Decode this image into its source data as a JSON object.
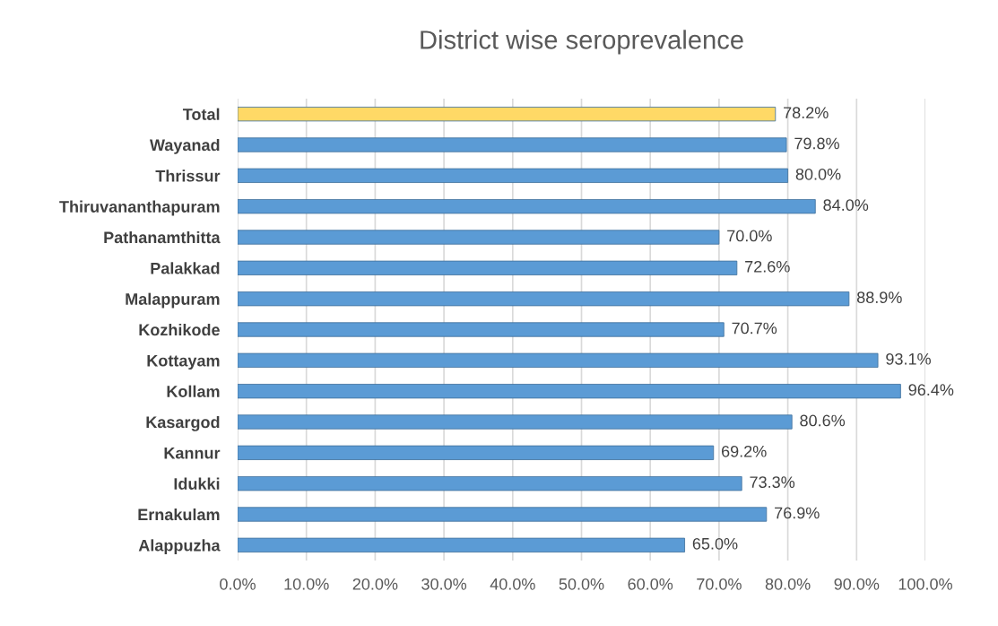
{
  "chart_data": {
    "type": "bar",
    "orientation": "horizontal",
    "title": "District wise seroprevalence",
    "categories": [
      "Total",
      "Wayanad",
      "Thrissur",
      "Thiruvananthapuram",
      "Pathanamthitta",
      "Palakkad",
      "Malappuram",
      "Kozhikode",
      "Kottayam",
      "Kollam",
      "Kasargod",
      "Kannur",
      "Idukki",
      "Ernakulam",
      "Alappuzha"
    ],
    "values": [
      78.2,
      79.8,
      80.0,
      84.0,
      70.0,
      72.6,
      88.9,
      70.7,
      93.1,
      96.4,
      80.6,
      69.2,
      73.3,
      76.9,
      65.0
    ],
    "colors": [
      "#ffd966",
      "#5b9bd5",
      "#5b9bd5",
      "#5b9bd5",
      "#5b9bd5",
      "#5b9bd5",
      "#5b9bd5",
      "#5b9bd5",
      "#5b9bd5",
      "#5b9bd5",
      "#5b9bd5",
      "#5b9bd5",
      "#5b9bd5",
      "#5b9bd5",
      "#5b9bd5"
    ],
    "value_labels": [
      "78.2%",
      "79.8%",
      "80.0%",
      "84.0%",
      "70.0%",
      "72.6%",
      "88.9%",
      "70.7%",
      "93.1%",
      "96.4%",
      "80.6%",
      "69.2%",
      "73.3%",
      "76.9%",
      "65.0%"
    ],
    "xlim": [
      0,
      100
    ],
    "xticks": [
      {
        "value": 0,
        "label": "0.0%"
      },
      {
        "value": 10,
        "label": "10.0%"
      },
      {
        "value": 20,
        "label": "20.0%"
      },
      {
        "value": 30,
        "label": "30.0%"
      },
      {
        "value": 40,
        "label": "40.0%"
      },
      {
        "value": 50,
        "label": "50.0%"
      },
      {
        "value": 60,
        "label": "60.0%"
      },
      {
        "value": 70,
        "label": "70.0%"
      },
      {
        "value": 80,
        "label": "80.0%"
      },
      {
        "value": 90,
        "label": "90.0%"
      },
      {
        "value": 100,
        "label": "100.0%"
      }
    ],
    "grid": "x",
    "legend": false
  }
}
